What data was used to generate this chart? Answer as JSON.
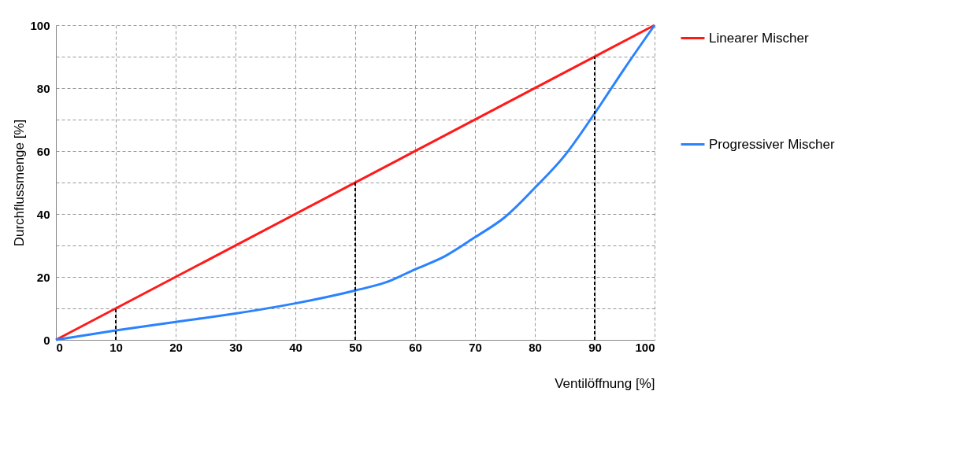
{
  "chart_data": {
    "type": "line",
    "xlabel": "Ventilöffnung [%]",
    "ylabel": "Durchflussmenge [%]",
    "xlim": [
      0,
      100
    ],
    "xticks": [
      0,
      10,
      20,
      30,
      40,
      50,
      60,
      70,
      80,
      90,
      100
    ],
    "ylim": [
      0,
      100
    ],
    "yticks": [
      0,
      {
        "value": 10,
        "label": null
      },
      20,
      {
        "value": 30,
        "label": null
      },
      40,
      {
        "value": 50,
        "label": null
      },
      60,
      {
        "value": 70,
        "label": null
      },
      80,
      {
        "value": 90,
        "label": null
      },
      100
    ],
    "grid": true,
    "legend": "right",
    "line_style": "solid",
    "marker": "none",
    "series": [
      {
        "name": "Linearer Mischer",
        "color": "#ff1a1a",
        "x": [
          0,
          100
        ],
        "values": [
          0,
          100
        ]
      },
      {
        "name": "Progressiver Mischer",
        "color": "#2a82ff",
        "x": [
          0,
          10,
          20,
          30,
          40,
          50,
          55,
          60,
          65,
          70,
          75,
          80,
          85,
          90,
          95,
          100
        ],
        "values": [
          0,
          3,
          5.7,
          8.4,
          11.6,
          15.7,
          18.2,
          22.4,
          26.6,
          32.6,
          39,
          48.3,
          58.6,
          72,
          86.3,
          100
        ]
      },
      {
        "type": "line",
        "color": "#000000",
        "line_style": "dashed",
        "x": [
          10,
          10
        ],
        "values": [
          0,
          10
        ]
      },
      {
        "type": "line",
        "color": "#000000",
        "line_style": "dashed",
        "x": [
          50,
          50
        ],
        "values": [
          0,
          50
        ]
      },
      {
        "type": "line",
        "color": "#000000",
        "line_style": "dashed",
        "x": [
          90,
          90
        ],
        "values": [
          0,
          90
        ]
      }
    ]
  }
}
